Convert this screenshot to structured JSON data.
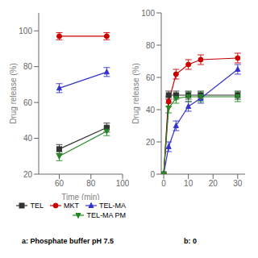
{
  "chart_data": [
    {
      "type": "line",
      "title": "a: Phosphate buffer pH 7.5",
      "xlabel": "Time (min)",
      "ylabel": "Drug release (%)",
      "xlim": [
        47,
        100
      ],
      "ylim": [
        20,
        110
      ],
      "xticks": [
        60,
        80,
        100
      ],
      "yticks": [
        20,
        40,
        60,
        80,
        100
      ],
      "legend": "lower right",
      "series": [
        {
          "name": "TEL",
          "color": "#333333",
          "marker": "square",
          "x": [
            60,
            90
          ],
          "values": [
            34,
            46
          ],
          "yerr": [
            2.5,
            2.5
          ]
        },
        {
          "name": "MKT",
          "color": "#cc0000",
          "marker": "circle",
          "x": [
            60,
            90
          ],
          "values": [
            97,
            97
          ],
          "yerr": [
            2,
            2
          ]
        },
        {
          "name": "TEL-MA",
          "color": "#3333cc",
          "marker": "triangle_up",
          "x": [
            60,
            90
          ],
          "values": [
            68,
            77
          ],
          "yerr": [
            2.5,
            2.5
          ]
        },
        {
          "name": "TEL-MA PM",
          "color": "#228822",
          "marker": "triangle_down",
          "x": [
            60,
            90
          ],
          "values": [
            30,
            44
          ],
          "yerr": [
            2.5,
            2.5
          ]
        }
      ]
    },
    {
      "type": "line",
      "title": "b: 0",
      "ylabel": "Drug release (%)",
      "xlim": [
        -1,
        33
      ],
      "ylim": [
        0,
        100
      ],
      "xticks": [
        0,
        10,
        20,
        30
      ],
      "yticks": [
        0,
        20,
        40,
        60,
        80,
        100
      ],
      "series": [
        {
          "name": "TEL",
          "color": "#333333",
          "marker": "square",
          "x": [
            0,
            2,
            5,
            10,
            15,
            30
          ],
          "values": [
            0,
            49,
            49,
            49,
            49,
            49
          ],
          "yerr": [
            0,
            2.5,
            2.5,
            2.5,
            2.5,
            2.5
          ]
        },
        {
          "name": "MKT",
          "color": "#cc0000",
          "marker": "circle",
          "x": [
            0,
            2,
            5,
            10,
            15,
            30
          ],
          "values": [
            0,
            45,
            62,
            68,
            71,
            72
          ],
          "yerr": [
            0,
            3,
            3,
            3,
            3,
            3
          ]
        },
        {
          "name": "TEL-MA",
          "color": "#3333cc",
          "marker": "triangle_up",
          "x": [
            0,
            2,
            5,
            10,
            15,
            30
          ],
          "values": [
            0,
            17,
            30,
            42,
            47,
            65
          ],
          "yerr": [
            0,
            3,
            3,
            3,
            3,
            3
          ]
        },
        {
          "name": "TEL-MA PM",
          "color": "#228822",
          "marker": "triangle_down",
          "x": [
            0,
            2,
            5,
            10,
            15,
            30
          ],
          "values": [
            0,
            41,
            47,
            48,
            48,
            48
          ],
          "yerr": [
            0,
            3,
            3,
            3,
            3,
            3
          ]
        }
      ]
    }
  ]
}
